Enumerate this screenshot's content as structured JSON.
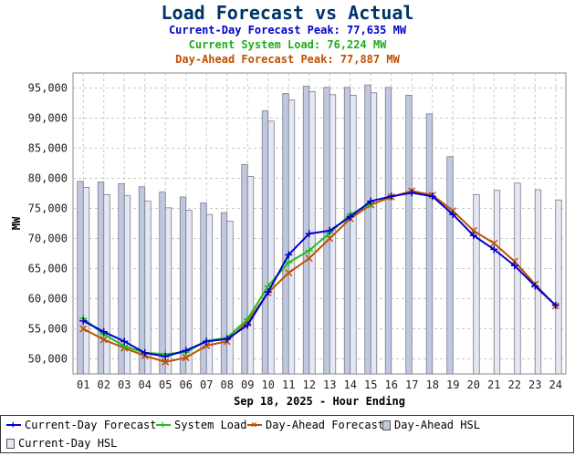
{
  "header": {
    "title": "Load Forecast vs Actual",
    "subtitles": [
      {
        "text": "Current-Day Forecast Peak:  77,635 MW",
        "color": "#0000cc"
      },
      {
        "text": "Current System Load:  76,224 MW",
        "color": "#22aa22"
      },
      {
        "text": "Day-Ahead Forecast Peak:  77,887 MW",
        "color": "#c05000"
      }
    ]
  },
  "chart_data": {
    "type": "bar+line",
    "xlabel": "Sep 18, 2025 - Hour Ending",
    "ylabel": "MW",
    "ylim": [
      47500,
      97500
    ],
    "yticks": [
      50000,
      55000,
      60000,
      65000,
      70000,
      75000,
      80000,
      85000,
      90000,
      95000
    ],
    "ytick_labels": [
      "50,000",
      "55,000",
      "60,000",
      "65,000",
      "70,000",
      "75,000",
      "80,000",
      "85,000",
      "90,000",
      "95,000"
    ],
    "grid": true,
    "legend_position": "bottom",
    "categories": [
      "01",
      "02",
      "03",
      "04",
      "05",
      "06",
      "07",
      "08",
      "09",
      "10",
      "11",
      "12",
      "13",
      "14",
      "15",
      "16",
      "17",
      "18",
      "19",
      "20",
      "21",
      "22",
      "23",
      "24"
    ],
    "bars": [
      {
        "name": "Day-Ahead HSL",
        "color": "#c0c8e0",
        "values": [
          79500,
          79400,
          79100,
          78600,
          77700,
          76900,
          75900,
          74300,
          82300,
          91200,
          94100,
          95300,
          95100,
          95100,
          95500,
          95100,
          93800,
          90700,
          83600,
          null,
          null,
          null,
          null,
          null
        ]
      },
      {
        "name": "Current-Day HSL",
        "color": "#e4e8f4",
        "values": [
          78500,
          77300,
          77100,
          76200,
          75100,
          74700,
          74000,
          72900,
          80300,
          89500,
          93000,
          94400,
          93900,
          93800,
          94200,
          null,
          null,
          null,
          null,
          77300,
          78000,
          79200,
          78100,
          76400
        ]
      }
    ],
    "series": [
      {
        "name": "Current-Day Forecast",
        "color": "#0000cc",
        "marker": "plus",
        "values": [
          56300,
          54500,
          52900,
          51000,
          50400,
          51400,
          52900,
          53300,
          55600,
          61100,
          67300,
          70800,
          71300,
          73600,
          76200,
          77000,
          77600,
          77000,
          74000,
          70500,
          68200,
          65500,
          62100,
          58900
        ]
      },
      {
        "name": "System Load",
        "color": "#22bb22",
        "marker": "plus",
        "values": [
          56700,
          54100,
          52100,
          51000,
          50800,
          51100,
          53000,
          53500,
          56600,
          62100,
          66000,
          68000,
          70900,
          74000,
          75700,
          null,
          null,
          null,
          null,
          null,
          null,
          null,
          null,
          null
        ]
      },
      {
        "name": "Day-Ahead Forecast",
        "color": "#c05000",
        "marker": "x",
        "values": [
          55000,
          53200,
          51800,
          50500,
          49500,
          50200,
          52200,
          52900,
          56200,
          61000,
          64300,
          66700,
          70000,
          73300,
          75600,
          76900,
          77900,
          77200,
          74600,
          71300,
          69200,
          66200,
          62400,
          58800
        ]
      }
    ]
  },
  "legend": {
    "items": [
      {
        "label": "Current-Day Forecast",
        "kind": "line",
        "color": "#0000cc",
        "marker": "+"
      },
      {
        "label": "System Load",
        "kind": "line",
        "color": "#22bb22",
        "marker": "+"
      },
      {
        "label": "Day-Ahead Forecast",
        "kind": "line",
        "color": "#c05000",
        "marker": "×"
      },
      {
        "label": "Day-Ahead HSL",
        "kind": "bar",
        "color": "#c0c8e0"
      },
      {
        "label": "Current-Day HSL",
        "kind": "bar",
        "color": "#e4e8f4"
      }
    ]
  }
}
